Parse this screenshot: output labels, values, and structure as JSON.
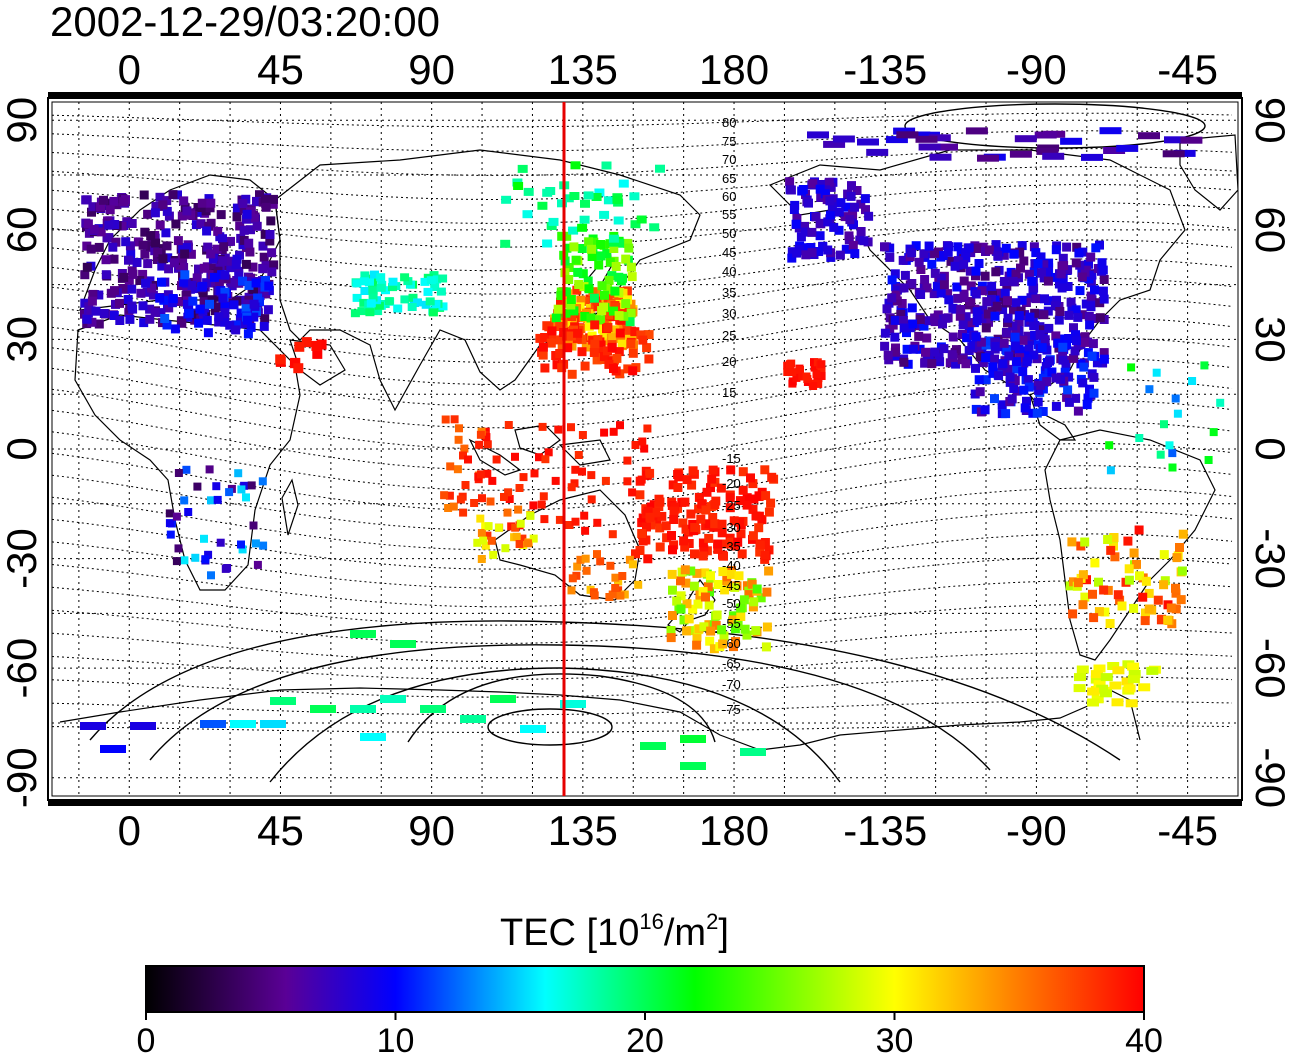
{
  "title": "2002-12-29/03:20:00",
  "map": {
    "top_lon_ticks": [
      "0",
      "45",
      "90",
      "135",
      "180",
      "-135",
      "-90",
      "-45"
    ],
    "bottom_lon_ticks": [
      "0",
      "45",
      "90",
      "135",
      "180",
      "-135",
      "-90",
      "-45"
    ],
    "lat_ticks": [
      "90",
      "60",
      "30",
      "0",
      "-30",
      "-60",
      "-90"
    ],
    "lon_values": [
      0,
      45,
      90,
      135,
      180,
      225,
      270,
      315
    ],
    "lat_values": [
      90,
      60,
      30,
      0,
      -30,
      -60,
      -90
    ],
    "lon_range": [
      -23,
      330
    ],
    "lat_range": [
      -95,
      95
    ],
    "grid": true,
    "meridian_marker_lon": 130,
    "meridian_marker_color": "#e60000",
    "contour_labels_north": [
      "80",
      "75",
      "70",
      "65",
      "60",
      "55",
      "50",
      "45",
      "40",
      "35",
      "30",
      "25",
      "20",
      "15"
    ],
    "contour_labels_south": [
      "-15",
      "-20",
      "-25",
      "-30",
      "-35",
      "-40",
      "-45",
      "-50",
      "-55",
      "-60",
      "-65",
      "-70",
      "-75"
    ]
  },
  "colorbar": {
    "label_prefix": "TEC  [10",
    "label_exp1": "16",
    "label_mid": "/m",
    "label_exp2": "2",
    "label_suffix": "]",
    "ticks": [
      "0",
      "10",
      "20",
      "30",
      "40"
    ],
    "min": 0,
    "max": 40,
    "stops": [
      "#000000",
      "#5a0096",
      "#0000ff",
      "#00ffff",
      "#00ff00",
      "#ffff00",
      "#ff8000",
      "#ff0000"
    ]
  }
}
